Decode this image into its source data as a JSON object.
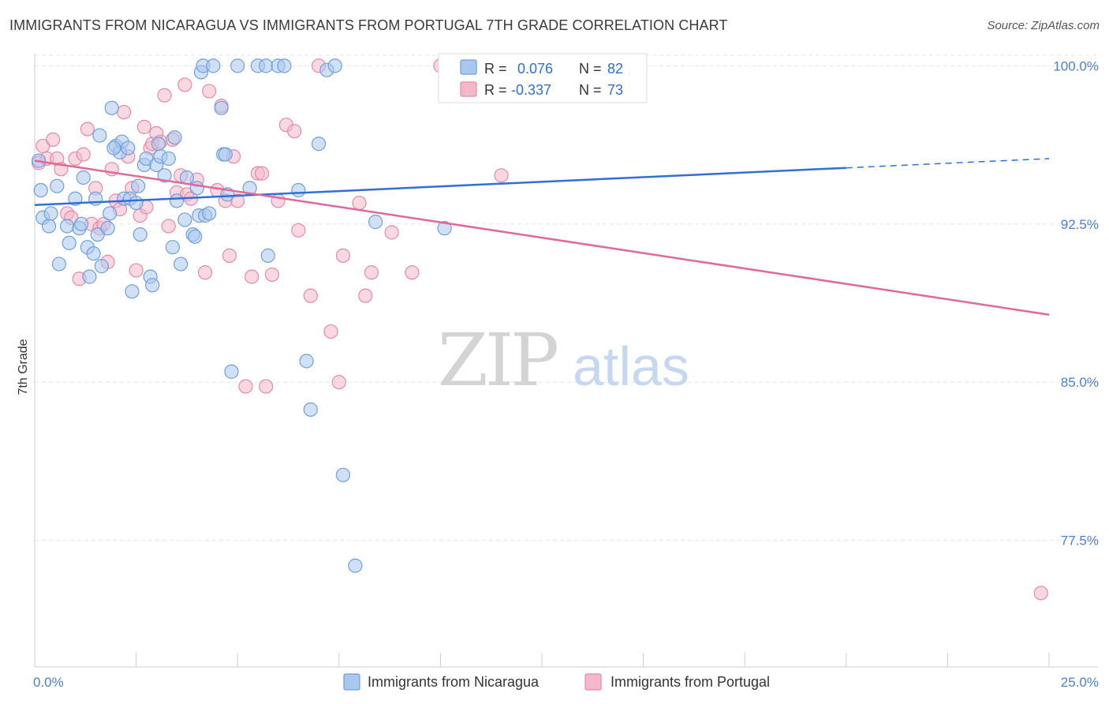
{
  "title": "IMMIGRANTS FROM NICARAGUA VS IMMIGRANTS FROM PORTUGAL 7TH GRADE CORRELATION CHART",
  "source": "Source: ZipAtlas.com",
  "watermark": {
    "zip": "ZIP",
    "atlas": "atlas"
  },
  "colors": {
    "nicaragua_fill": "#a9c8ef",
    "nicaragua_stroke": "#6f9fdc",
    "nicaragua_line": "#2f6fd6",
    "portugal_fill": "#f5b8cb",
    "portugal_stroke": "#e58aa6",
    "portugal_line": "#e0689a",
    "grid": "#e5e5e5"
  },
  "legend_box": {
    "rows": [
      {
        "r_label": "R =",
        "r_value": "0.076",
        "n_label": "N =",
        "n_value": "82"
      },
      {
        "r_label": "R =",
        "r_value": "-0.337",
        "n_label": "N =",
        "n_value": "73"
      }
    ]
  },
  "chart_data": {
    "type": "scatter",
    "title": "IMMIGRANTS FROM NICARAGUA VS IMMIGRANTS FROM PORTUGAL 7TH GRADE CORRELATION CHART",
    "xlabel": "",
    "ylabel": "7th Grade",
    "xlim": [
      0,
      25
    ],
    "ylim": [
      71.5,
      100.5
    ],
    "x_tick_labels": [
      "0.0%",
      "25.0%"
    ],
    "y_ticks": [
      77.5,
      85.0,
      92.5,
      100.0
    ],
    "y_tick_labels": [
      "77.5%",
      "85.0%",
      "92.5%",
      "100.0%"
    ],
    "grid": true,
    "legend_position": "bottom",
    "series": [
      {
        "name": "Immigrants from Nicaragua",
        "R": 0.076,
        "N": 82,
        "trend": {
          "x0": 0,
          "y0": 93.4,
          "x1": 25,
          "y1": 95.6,
          "solid_until": 20.0
        },
        "points": [
          [
            0.1,
            95.5
          ],
          [
            0.15,
            94.1
          ],
          [
            0.2,
            92.8
          ],
          [
            0.35,
            92.4
          ],
          [
            0.4,
            93.0
          ],
          [
            0.55,
            94.3
          ],
          [
            0.6,
            90.6
          ],
          [
            0.8,
            92.4
          ],
          [
            0.85,
            91.6
          ],
          [
            1.0,
            93.7
          ],
          [
            1.1,
            92.3
          ],
          [
            1.15,
            92.5
          ],
          [
            1.2,
            94.7
          ],
          [
            1.3,
            91.4
          ],
          [
            1.35,
            90.0
          ],
          [
            1.45,
            91.1
          ],
          [
            1.5,
            93.7
          ],
          [
            1.55,
            92.0
          ],
          [
            1.6,
            96.7
          ],
          [
            1.65,
            90.5
          ],
          [
            1.8,
            92.3
          ],
          [
            1.85,
            93.0
          ],
          [
            1.9,
            98.0
          ],
          [
            2.0,
            96.2
          ],
          [
            2.1,
            95.9
          ],
          [
            2.15,
            96.4
          ],
          [
            2.2,
            93.7
          ],
          [
            2.3,
            96.1
          ],
          [
            2.35,
            93.7
          ],
          [
            2.4,
            89.3
          ],
          [
            2.5,
            93.5
          ],
          [
            2.55,
            94.3
          ],
          [
            2.6,
            92.0
          ],
          [
            2.7,
            95.3
          ],
          [
            2.75,
            95.6
          ],
          [
            2.85,
            90.0
          ],
          [
            2.9,
            89.6
          ],
          [
            3.0,
            95.3
          ],
          [
            3.05,
            96.3
          ],
          [
            3.1,
            95.7
          ],
          [
            3.2,
            94.8
          ],
          [
            3.3,
            95.6
          ],
          [
            3.4,
            91.4
          ],
          [
            3.45,
            96.6
          ],
          [
            3.5,
            93.6
          ],
          [
            3.6,
            90.6
          ],
          [
            3.7,
            92.7
          ],
          [
            3.75,
            94.7
          ],
          [
            3.9,
            92.0
          ],
          [
            4.0,
            94.2
          ],
          [
            4.05,
            92.9
          ],
          [
            4.1,
            99.7
          ],
          [
            4.15,
            100.0
          ],
          [
            4.2,
            92.9
          ],
          [
            4.3,
            93.0
          ],
          [
            4.4,
            100.0
          ],
          [
            4.6,
            98.0
          ],
          [
            4.65,
            95.8
          ],
          [
            4.7,
            95.8
          ],
          [
            4.75,
            93.9
          ],
          [
            4.85,
            85.5
          ],
          [
            5.0,
            100.0
          ],
          [
            5.3,
            94.2
          ],
          [
            5.5,
            100.0
          ],
          [
            5.7,
            100.0
          ],
          [
            5.75,
            91.0
          ],
          [
            6.0,
            100.0
          ],
          [
            6.15,
            100.0
          ],
          [
            6.5,
            94.1
          ],
          [
            6.7,
            86.0
          ],
          [
            6.8,
            83.7
          ],
          [
            7.0,
            96.3
          ],
          [
            7.2,
            99.8
          ],
          [
            7.4,
            100.0
          ],
          [
            7.6,
            80.6
          ],
          [
            7.9,
            76.3
          ],
          [
            8.4,
            92.6
          ],
          [
            10.1,
            92.3
          ],
          [
            12.0,
            99.6
          ],
          [
            13.3,
            100.0
          ],
          [
            3.95,
            91.9
          ],
          [
            1.95,
            96.1
          ]
        ]
      },
      {
        "name": "Immigrants from Portugal",
        "R": -0.337,
        "N": 73,
        "trend": {
          "x0": 0,
          "y0": 95.5,
          "x1": 25,
          "y1": 88.2
        },
        "points": [
          [
            0.1,
            95.4
          ],
          [
            0.2,
            96.2
          ],
          [
            0.3,
            95.6
          ],
          [
            0.45,
            96.5
          ],
          [
            0.55,
            95.6
          ],
          [
            0.65,
            95.1
          ],
          [
            0.8,
            93.0
          ],
          [
            0.9,
            92.8
          ],
          [
            1.0,
            95.6
          ],
          [
            1.1,
            89.9
          ],
          [
            1.2,
            95.8
          ],
          [
            1.3,
            97.0
          ],
          [
            1.4,
            92.5
          ],
          [
            1.5,
            94.2
          ],
          [
            1.6,
            92.3
          ],
          [
            1.7,
            92.5
          ],
          [
            1.8,
            90.7
          ],
          [
            1.9,
            95.1
          ],
          [
            2.0,
            93.6
          ],
          [
            2.1,
            93.2
          ],
          [
            2.2,
            97.8
          ],
          [
            2.3,
            95.7
          ],
          [
            2.4,
            94.2
          ],
          [
            2.5,
            90.3
          ],
          [
            2.6,
            92.9
          ],
          [
            2.7,
            97.1
          ],
          [
            2.75,
            93.3
          ],
          [
            2.85,
            96.1
          ],
          [
            2.9,
            96.3
          ],
          [
            3.0,
            96.8
          ],
          [
            3.1,
            96.4
          ],
          [
            3.2,
            98.6
          ],
          [
            3.3,
            92.4
          ],
          [
            3.4,
            96.5
          ],
          [
            3.5,
            94.0
          ],
          [
            3.6,
            94.8
          ],
          [
            3.7,
            99.1
          ],
          [
            3.75,
            93.9
          ],
          [
            3.85,
            93.7
          ],
          [
            4.0,
            94.6
          ],
          [
            4.2,
            90.2
          ],
          [
            4.3,
            98.8
          ],
          [
            4.5,
            94.1
          ],
          [
            4.6,
            98.1
          ],
          [
            4.7,
            93.6
          ],
          [
            4.8,
            91.0
          ],
          [
            4.9,
            95.7
          ],
          [
            5.0,
            93.6
          ],
          [
            5.2,
            84.8
          ],
          [
            5.35,
            90.0
          ],
          [
            5.5,
            94.9
          ],
          [
            5.6,
            94.9
          ],
          [
            5.7,
            84.8
          ],
          [
            5.85,
            90.1
          ],
          [
            6.0,
            93.6
          ],
          [
            6.2,
            97.2
          ],
          [
            6.4,
            96.9
          ],
          [
            6.5,
            92.2
          ],
          [
            6.8,
            89.1
          ],
          [
            7.0,
            100.0
          ],
          [
            7.3,
            87.4
          ],
          [
            7.5,
            85.0
          ],
          [
            7.6,
            91.0
          ],
          [
            8.0,
            93.5
          ],
          [
            8.15,
            89.1
          ],
          [
            8.3,
            90.2
          ],
          [
            8.8,
            92.1
          ],
          [
            9.3,
            90.2
          ],
          [
            10.0,
            100.0
          ],
          [
            11.5,
            94.8
          ],
          [
            12.1,
            99.9
          ],
          [
            13.0,
            100.0
          ],
          [
            24.8,
            75.0
          ]
        ]
      }
    ]
  }
}
